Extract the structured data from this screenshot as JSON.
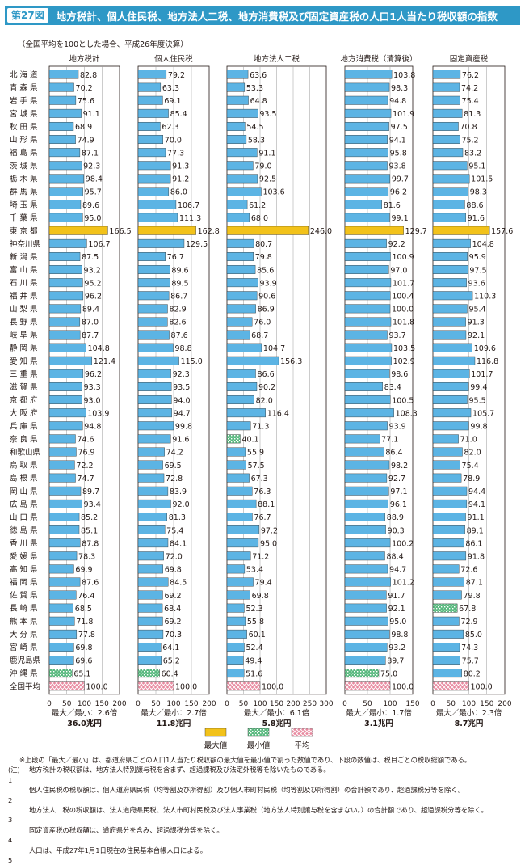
{
  "header": {
    "fig_num": "第27図",
    "title": "地方税計、個人住民税、地方法人二税、地方消費税及び固定資産税の人口1人当たり税収額の指数"
  },
  "note": "（全国平均を100とした場合、平成26年度決算）",
  "colors": {
    "bar": "#5cb4e4",
    "max": "#f2c21a",
    "min": "#59b97f",
    "avg": "#e88aa0",
    "header": "#2e98c6"
  },
  "legend": {
    "max": "最大値",
    "min": "最小値",
    "avg": "平均"
  },
  "chart_data": {
    "type": "bar",
    "orientation": "horizontal",
    "categories": [
      "北海道",
      "青森県",
      "岩手県",
      "宮城県",
      "秋田県",
      "山形県",
      "福島県",
      "茨城県",
      "栃木県",
      "群馬県",
      "埼玉県",
      "千葉県",
      "東京都",
      "神奈川県",
      "新潟県",
      "富山県",
      "石川県",
      "福井県",
      "山梨県",
      "長野県",
      "岐阜県",
      "静岡県",
      "愛知県",
      "三重県",
      "滋賀県",
      "京都府",
      "大阪府",
      "兵庫県",
      "奈良県",
      "和歌山県",
      "鳥取県",
      "島根県",
      "岡山県",
      "広島県",
      "山口県",
      "徳島県",
      "香川県",
      "愛媛県",
      "高知県",
      "福岡県",
      "佐賀県",
      "長崎県",
      "熊本県",
      "大分県",
      "宮崎県",
      "鹿児島県",
      "沖縄県",
      "全国平均"
    ],
    "category_labels": [
      "北 海 道",
      "青 森 県",
      "岩 手 県",
      "宮 城 県",
      "秋 田 県",
      "山 形 県",
      "福 島 県",
      "茨 城 県",
      "栃 木 県",
      "群 馬 県",
      "埼 玉 県",
      "千 葉 県",
      "東 京 都",
      "神奈川県",
      "新 潟 県",
      "富 山 県",
      "石 川 県",
      "福 井 県",
      "山 梨 県",
      "長 野 県",
      "岐 阜 県",
      "静 岡 県",
      "愛 知 県",
      "三 重 県",
      "滋 賀 県",
      "京 都 府",
      "大 阪 府",
      "兵 庫 県",
      "奈 良 県",
      "和歌山県",
      "鳥 取 県",
      "島 根 県",
      "岡 山 県",
      "広 島 県",
      "山 口 県",
      "徳 島 県",
      "香 川 県",
      "愛 媛 県",
      "高 知 県",
      "福 岡 県",
      "佐 賀 県",
      "長 崎 県",
      "熊 本 県",
      "大 分 県",
      "宮 崎 県",
      "鹿児島県",
      "沖 縄 県",
      "全国平均"
    ],
    "series": [
      {
        "name": "地方税計",
        "xlim": [
          0,
          200
        ],
        "ticks": [
          0,
          50,
          100,
          150,
          200
        ],
        "values": [
          82.8,
          70.2,
          75.6,
          91.1,
          68.9,
          74.9,
          87.1,
          92.3,
          98.4,
          95.7,
          89.6,
          95.0,
          166.5,
          106.7,
          87.5,
          93.2,
          95.2,
          96.2,
          89.4,
          87.0,
          87.7,
          104.8,
          121.4,
          96.2,
          93.3,
          93.0,
          103.9,
          94.8,
          74.6,
          76.9,
          72.2,
          74.7,
          89.7,
          93.4,
          85.2,
          85.1,
          87.8,
          78.3,
          69.9,
          87.6,
          76.4,
          68.5,
          71.8,
          77.8,
          69.8,
          69.6,
          65.1,
          100.0
        ],
        "max_index": 12,
        "min_index": 46,
        "ratio": "最大／最小：2.6倍",
        "total": "36.0兆円"
      },
      {
        "name": "個人住民税",
        "xlim": [
          0,
          200
        ],
        "ticks": [
          0,
          50,
          100,
          150,
          200
        ],
        "values": [
          79.2,
          63.3,
          69.1,
          85.4,
          62.3,
          70.0,
          77.3,
          91.3,
          91.2,
          86.0,
          106.7,
          111.3,
          162.8,
          129.5,
          76.7,
          89.6,
          89.5,
          86.7,
          82.9,
          82.6,
          87.6,
          98.8,
          115.0,
          92.3,
          93.5,
          94.0,
          94.7,
          99.8,
          91.6,
          74.2,
          69.5,
          72.8,
          83.9,
          92.0,
          81.3,
          75.4,
          84.1,
          72.0,
          69.8,
          84.5,
          69.2,
          68.4,
          69.2,
          70.3,
          64.1,
          65.2,
          60.4,
          100.0
        ],
        "max_index": 12,
        "min_index": 46,
        "ratio": "最大／最小：2.7倍",
        "total": "11.8兆円"
      },
      {
        "name": "地方法人二税",
        "xlim": [
          0,
          300
        ],
        "ticks": [
          0,
          50,
          100,
          150,
          200,
          250,
          300
        ],
        "values": [
          63.6,
          53.3,
          64.8,
          93.5,
          54.5,
          58.3,
          91.1,
          79.0,
          92.5,
          103.6,
          61.2,
          68.0,
          246.0,
          80.7,
          79.8,
          85.6,
          93.9,
          90.6,
          86.9,
          76.0,
          68.7,
          104.7,
          156.3,
          86.6,
          90.2,
          82.0,
          116.4,
          71.3,
          40.1,
          55.9,
          57.5,
          67.3,
          76.3,
          88.1,
          76.7,
          97.2,
          95.0,
          71.2,
          53.4,
          79.4,
          69.8,
          52.3,
          55.8,
          60.1,
          52.4,
          49.4,
          51.6,
          100.0
        ],
        "max_index": 12,
        "min_index": 28,
        "ratio": "最大／最小：6.1倍",
        "total": "5.8兆円"
      },
      {
        "name": "地方消費税（清算後）",
        "xlim": [
          0,
          150
        ],
        "ticks": [
          0,
          50,
          100,
          150
        ],
        "values": [
          103.8,
          98.3,
          94.8,
          101.9,
          97.5,
          94.1,
          95.8,
          93.8,
          99.7,
          96.2,
          81.6,
          99.1,
          129.7,
          92.2,
          100.9,
          97.0,
          101.7,
          100.4,
          100.0,
          101.8,
          93.7,
          103.5,
          102.9,
          98.6,
          83.4,
          100.5,
          108.3,
          93.9,
          77.1,
          86.4,
          98.2,
          92.7,
          97.1,
          96.1,
          88.9,
          90.3,
          100.2,
          88.4,
          94.7,
          101.2,
          91.7,
          92.1,
          95.0,
          98.8,
          93.2,
          89.7,
          75.0,
          100.0
        ],
        "max_index": 12,
        "min_index": 46,
        "ratio": "最大／最小：1.7倍",
        "total": "3.1兆円"
      },
      {
        "name": "固定資産税",
        "xlim": [
          0,
          200
        ],
        "ticks": [
          0,
          50,
          100,
          150,
          200
        ],
        "values": [
          76.2,
          74.2,
          75.4,
          81.3,
          70.8,
          75.2,
          83.2,
          95.1,
          101.5,
          98.3,
          88.6,
          91.6,
          157.6,
          104.8,
          95.9,
          97.5,
          93.6,
          110.3,
          95.4,
          91.3,
          92.1,
          109.6,
          116.8,
          101.7,
          99.4,
          95.5,
          105.7,
          99.8,
          71.0,
          82.0,
          75.4,
          78.9,
          94.4,
          94.1,
          91.1,
          89.1,
          86.1,
          91.8,
          72.6,
          87.1,
          79.8,
          67.8,
          72.9,
          85.0,
          74.3,
          75.7,
          80.2,
          100.0
        ],
        "max_index": 12,
        "min_index": 41,
        "ratio": "最大／最小：2.3倍",
        "total": "8.7兆円"
      }
    ],
    "average_index": 47
  },
  "footnotes": [
    {
      "mark": "",
      "text": "※上段の「最大／最小」は、都道府県ごとの人口1人当たり税収額の最大値を最小値で割った数値であり、下段の数値は、税目ごとの税収総額である。"
    },
    {
      "mark": "(注)　1",
      "text": "地方税計の税収額は、地方法人特別譲与税を含まず、超過課税及び法定外税等を除いたものである。"
    },
    {
      "mark": "　　　2",
      "text": "個人住民税の税収額は、個人道府県民税（均等割及び所得割）及び個人市町村民税（均等割及び所得割）の合計額であり、超過課税分等を除く。"
    },
    {
      "mark": "　　　3",
      "text": "地方法人二税の税収額は、法人道府県民税、法人市町村民税及び法人事業税（地方法人特別譲与税を含まない。）の合計額であり、超過課税分等を除く。"
    },
    {
      "mark": "　　　4",
      "text": "固定資産税の税収額は、道府県分を含み、超過課税分等を除く。"
    },
    {
      "mark": "　　　5",
      "text": "人口は、平成27年1月1日現在の住民基本台帳人口による。"
    }
  ]
}
